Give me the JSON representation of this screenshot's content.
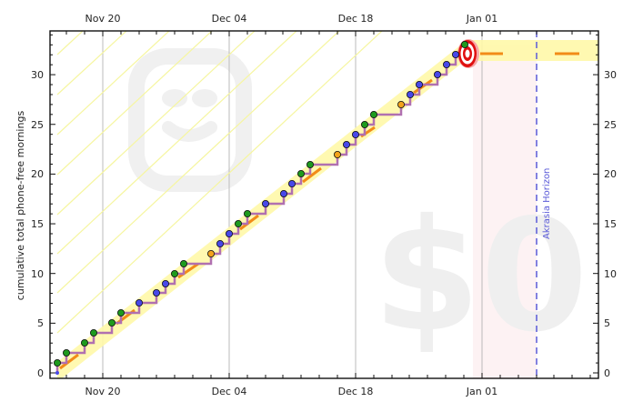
{
  "chart_data": {
    "type": "line",
    "title": "",
    "xlabel": "",
    "ylabel": "cumulative total phone-free mornings",
    "ylim": [
      0,
      33
    ],
    "yticks": [
      0,
      5,
      10,
      15,
      20,
      25,
      30
    ],
    "xticks": [
      "Nov 20",
      "Dec 04",
      "Dec 18",
      "Jan 01"
    ],
    "x_range": [
      "Nov 13",
      "Jan 14"
    ],
    "grid": "vertical lines at major date ticks",
    "watermarks": [
      "smiley-face",
      "$0"
    ],
    "annotations": [
      {
        "type": "vline",
        "label": "Akrasia Horizon",
        "x": "Jan 07",
        "style": "dashed",
        "color": "#5a5ad8"
      },
      {
        "type": "bullseye",
        "x": "Dec 30",
        "y": 32.5
      },
      {
        "type": "shaded-region",
        "x_from": "Dec 29",
        "x_to": "Jan 07",
        "color": "#fdf0f0"
      }
    ],
    "series": [
      {
        "name": "datapoints",
        "points": [
          {
            "x": "Nov 14",
            "y": 0,
            "color": "blue"
          },
          {
            "x": "Nov 14",
            "y": 1,
            "color": "green"
          },
          {
            "x": "Nov 15",
            "y": 2,
            "color": "green"
          },
          {
            "x": "Nov 17",
            "y": 3,
            "color": "green"
          },
          {
            "x": "Nov 18",
            "y": 4,
            "color": "green"
          },
          {
            "x": "Nov 21",
            "y": 5,
            "color": "green"
          },
          {
            "x": "Nov 22",
            "y": 6,
            "color": "green"
          },
          {
            "x": "Nov 24",
            "y": 7,
            "color": "blue"
          },
          {
            "x": "Nov 26",
            "y": 8,
            "color": "blue"
          },
          {
            "x": "Nov 27",
            "y": 9,
            "color": "blue"
          },
          {
            "x": "Nov 28",
            "y": 10,
            "color": "green"
          },
          {
            "x": "Nov 29",
            "y": 11,
            "color": "green"
          },
          {
            "x": "Dec 02",
            "y": 12,
            "color": "orange"
          },
          {
            "x": "Dec 03",
            "y": 13,
            "color": "blue"
          },
          {
            "x": "Dec 04",
            "y": 14,
            "color": "blue"
          },
          {
            "x": "Dec 05",
            "y": 15,
            "color": "green"
          },
          {
            "x": "Dec 06",
            "y": 16,
            "color": "green"
          },
          {
            "x": "Dec 08",
            "y": 17,
            "color": "blue"
          },
          {
            "x": "Dec 10",
            "y": 18,
            "color": "blue"
          },
          {
            "x": "Dec 11",
            "y": 19,
            "color": "blue"
          },
          {
            "x": "Dec 12",
            "y": 20,
            "color": "green"
          },
          {
            "x": "Dec 13",
            "y": 21,
            "color": "green"
          },
          {
            "x": "Dec 16",
            "y": 22,
            "color": "orange"
          },
          {
            "x": "Dec 17",
            "y": 23,
            "color": "blue"
          },
          {
            "x": "Dec 18",
            "y": 24,
            "color": "blue"
          },
          {
            "x": "Dec 19",
            "y": 25,
            "color": "green"
          },
          {
            "x": "Dec 20",
            "y": 26,
            "color": "green"
          },
          {
            "x": "Dec 23",
            "y": 27,
            "color": "orange"
          },
          {
            "x": "Dec 24",
            "y": 28,
            "color": "blue"
          },
          {
            "x": "Dec 25",
            "y": 29,
            "color": "blue"
          },
          {
            "x": "Dec 27",
            "y": 30,
            "color": "blue"
          },
          {
            "x": "Dec 28",
            "y": 31,
            "color": "blue"
          },
          {
            "x": "Dec 29",
            "y": 32,
            "color": "blue"
          },
          {
            "x": "Dec 30",
            "y": 33,
            "color": "green"
          }
        ]
      },
      {
        "name": "bright red line (road)",
        "color": "#f28c18",
        "description": "dashed orange centerline rising ~1/day, flat at ~32 after Dec 30"
      }
    ]
  },
  "labels": {
    "ylabel": "cumulative total phone-free mornings",
    "horizon": "Akrasia Horizon",
    "x_top": [
      "Nov 20",
      "Dec 04",
      "Dec 18",
      "Jan 01"
    ],
    "x_bottom": [
      "Nov 20",
      "Dec 04",
      "Dec 18",
      "Jan 01"
    ],
    "y_left": [
      "0",
      "5",
      "10",
      "15",
      "20",
      "25",
      "30"
    ],
    "y_right": [
      "0",
      "5",
      "10",
      "15",
      "20",
      "25",
      "30"
    ],
    "watermark_money": "$0"
  },
  "colors": {
    "point_green": "#1e9a1e",
    "point_blue": "#4848e8",
    "point_orange": "#f3a31c",
    "staircase": "#b070b0",
    "road_orange": "#f28c18",
    "yellow_band": "#fff8a8",
    "guide_lines": "#f4f49a",
    "horizon": "#5a5ad8",
    "bullseye_red": "#e01010",
    "pink_region": "#fdf0f0",
    "watermark": "#f0f0f0"
  }
}
